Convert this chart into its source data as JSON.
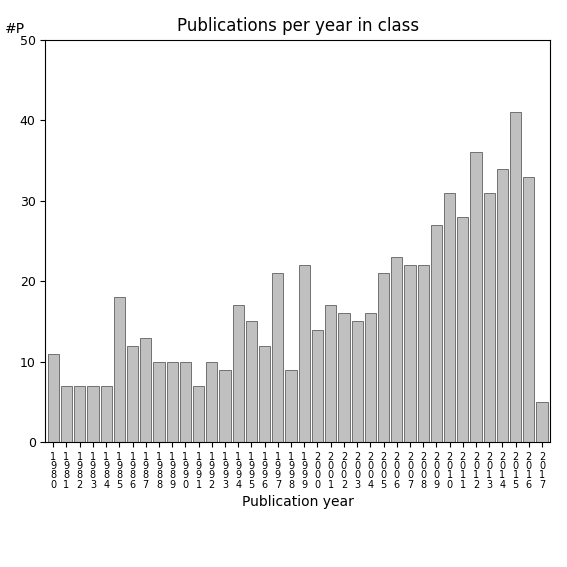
{
  "title": "Publications per year in class",
  "xlabel": "Publication year",
  "ylabel": "#P",
  "years": [
    "1980",
    "1981",
    "1982",
    "1983",
    "1984",
    "1985",
    "1986",
    "1987",
    "1988",
    "1989",
    "1990",
    "1991",
    "1992",
    "1993",
    "1994",
    "1995",
    "1996",
    "1997",
    "1998",
    "1999",
    "2000",
    "2001",
    "2002",
    "2003",
    "2004",
    "2005",
    "2006",
    "2007",
    "2008",
    "2009",
    "2010",
    "2011",
    "2012",
    "2013",
    "2014",
    "2015",
    "2016",
    "2017"
  ],
  "values": [
    11,
    7,
    7,
    7,
    7,
    18,
    12,
    13,
    10,
    10,
    10,
    7,
    10,
    9,
    17,
    15,
    12,
    21,
    9,
    22,
    14,
    17,
    16,
    15,
    16,
    21,
    23,
    22,
    22,
    27,
    31,
    28,
    36,
    31,
    34,
    41,
    33,
    5
  ],
  "bar_color": "#c0c0c0",
  "bar_edge_color": "#606060",
  "ylim": [
    0,
    50
  ],
  "yticks": [
    0,
    10,
    20,
    30,
    40,
    50
  ],
  "background_color": "#ffffff",
  "title_fontsize": 12,
  "label_fontsize": 10,
  "tick_fontsize": 9
}
